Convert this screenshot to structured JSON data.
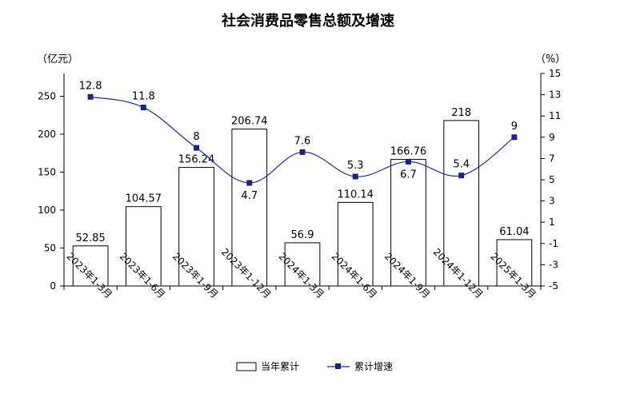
{
  "chart_data": {
    "type": "bar+line",
    "title": "社会消费品零售总额及增速",
    "left_axis": {
      "unit": "（亿元）",
      "ticks": [
        0,
        50,
        100,
        150,
        200,
        250
      ],
      "range": [
        0,
        280
      ]
    },
    "right_axis": {
      "unit": "（%）",
      "ticks": [
        -5,
        -3,
        -1,
        1,
        3,
        5,
        7,
        9,
        11,
        13,
        15
      ],
      "range": [
        -5,
        15
      ]
    },
    "categories": [
      "2023年1-3月",
      "2023年1-6月",
      "2023年1-9月",
      "2023年1-12月",
      "2024年1-3月",
      "2024年1-6月",
      "2024年1-9月",
      "2024年1-12月",
      "2025年1-3月"
    ],
    "series": [
      {
        "name": "当年累计",
        "type": "bar",
        "axis": "left",
        "color": "#ffffff",
        "values": [
          52.85,
          104.57,
          156.24,
          206.74,
          56.9,
          110.14,
          166.76,
          218,
          61.04
        ],
        "labels": [
          "52.85",
          "104.57",
          "156.24",
          "206.74",
          "56.9",
          "110.14",
          "166.76",
          "218",
          "61.04"
        ]
      },
      {
        "name": "累计增速",
        "type": "line",
        "axis": "right",
        "color": "#1f2f8f",
        "values": [
          12.8,
          11.8,
          8,
          4.7,
          7.6,
          5.3,
          6.7,
          5.4,
          9
        ],
        "labels": [
          "12.8",
          "11.8",
          "8",
          "4.7",
          "7.6",
          "5.3",
          "6.7",
          "5.4",
          "9"
        ]
      }
    ],
    "legend": {
      "placement": "bottom",
      "items": [
        "当年累计",
        "累计增速"
      ]
    },
    "grid": false
  }
}
